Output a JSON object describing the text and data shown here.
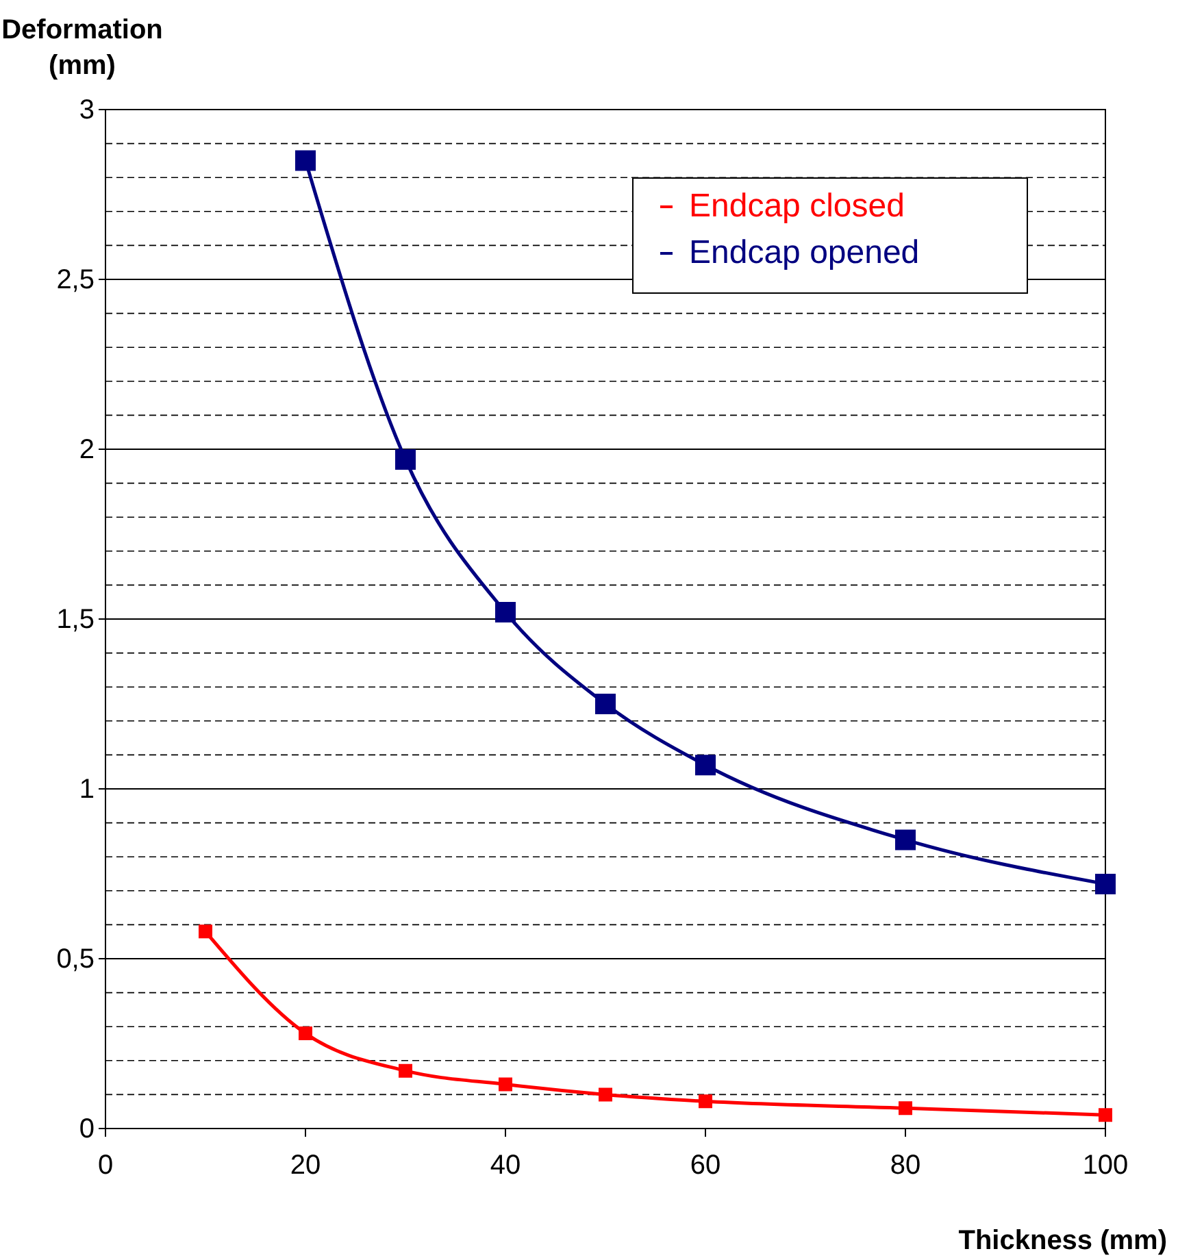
{
  "chart_data": {
    "type": "line",
    "xlabel": "Thickness (mm)",
    "ylabel": "Deformation (mm)",
    "x": [
      10,
      20,
      30,
      40,
      50,
      60,
      80,
      100
    ],
    "series": [
      {
        "name": "Endcap closed",
        "color": "#ff0000",
        "marker": "square",
        "values": [
          0.58,
          0.28,
          0.17,
          0.13,
          0.1,
          0.08,
          0.06,
          0.04
        ]
      },
      {
        "name": "Endcap opened",
        "color": "#000080",
        "marker": "square",
        "values": [
          null,
          2.85,
          1.97,
          1.52,
          1.25,
          1.07,
          0.85,
          0.72
        ]
      }
    ],
    "xlim": [
      0,
      100
    ],
    "xticks": [
      0,
      20,
      40,
      60,
      80,
      100
    ],
    "ylim": [
      0,
      3
    ],
    "yticks": [
      0,
      {
        "value": 0.1,
        "label": null
      },
      {
        "value": 0.2,
        "label": null
      },
      {
        "value": 0.3,
        "label": null
      },
      {
        "value": 0.4,
        "label": null
      },
      {
        "value": 0.5,
        "label": "0,5"
      },
      {
        "value": 0.6,
        "label": null
      },
      {
        "value": 0.7,
        "label": null
      },
      {
        "value": 0.8,
        "label": null
      },
      {
        "value": 0.9,
        "label": null
      },
      1,
      {
        "value": 1.1,
        "label": null
      },
      {
        "value": 1.2,
        "label": null
      },
      {
        "value": 1.3,
        "label": null
      },
      {
        "value": 1.4,
        "label": null
      },
      {
        "value": 1.5,
        "label": "1,5"
      },
      {
        "value": 1.6,
        "label": null
      },
      {
        "value": 1.7,
        "label": null
      },
      {
        "value": 1.8,
        "label": null
      },
      {
        "value": 1.9,
        "label": null
      },
      2,
      {
        "value": 2.1,
        "label": null
      },
      {
        "value": 2.2,
        "label": null
      },
      {
        "value": 2.3,
        "label": null
      },
      {
        "value": 2.4,
        "label": null
      },
      {
        "value": 2.5,
        "label": "2,5"
      },
      {
        "value": 2.6,
        "label": null
      },
      {
        "value": 2.7,
        "label": null
      },
      {
        "value": 2.8,
        "label": null
      },
      {
        "value": 2.9,
        "label": null
      },
      3
    ],
    "grid": "y",
    "legend": "top right",
    "line_style": "solid"
  }
}
